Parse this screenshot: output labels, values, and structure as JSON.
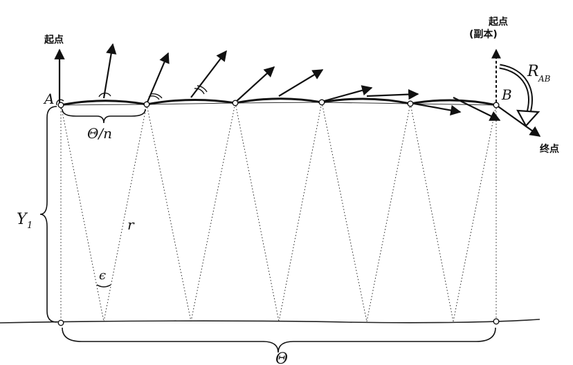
{
  "diagram": {
    "label_start": "起点",
    "label_start_copy_line1": "起点",
    "label_start_copy_line2": "(副本)",
    "label_end": "终点",
    "point_a": "A",
    "point_b": "B",
    "rotation_label": "R",
    "rotation_subscript": "AB",
    "segment_angle": "Θ/n",
    "total_angle": "Θ",
    "height": "Y",
    "height_subscript": "1",
    "radius": "r",
    "small_angle": "ϵ"
  }
}
